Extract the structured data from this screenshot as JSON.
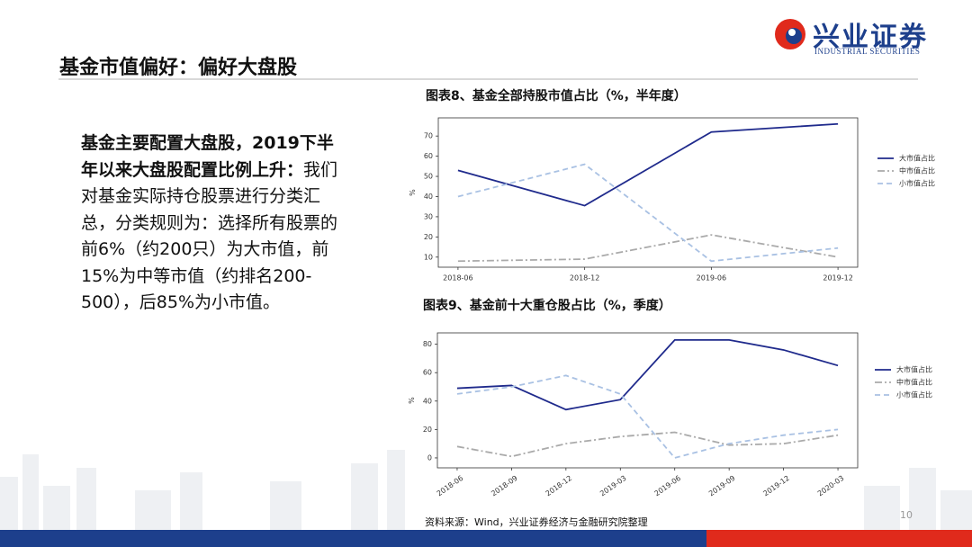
{
  "header": {
    "title": "基金市值偏好：偏好大盘股",
    "logo_name": "兴业证券",
    "logo_subtitle": "INDUSTRIAL SECURITIES"
  },
  "body": {
    "highlight": "基金主要配置大盘股，2019下半年以来大盘股配置比例上升：",
    "text": "我们对基金实际持仓股票进行分类汇总，分类规则为：选择所有股票的前6%（约200只）为大市值，前15%为中等市值（约排名200-500），后85%为小市值。"
  },
  "footer": {
    "source": "资料来源：Wind，兴业证券经济与金融研究院整理",
    "page": "10"
  },
  "chart_data": [
    {
      "type": "line",
      "title": "图表8、基金全部持股市值占比（%，半年度）",
      "y_label": "%",
      "categories": [
        "2018-06",
        "2018-12",
        "2019-06",
        "2019-12"
      ],
      "series": [
        {
          "name": "大市值占比",
          "color": "#1f2a8c",
          "linestyle": "solid",
          "values": [
            53,
            35.5,
            72,
            76
          ]
        },
        {
          "name": "中市值占比",
          "color": "#aaaaaa",
          "linestyle": "dashdot",
          "values": [
            8,
            9,
            21,
            10
          ]
        },
        {
          "name": "小市值占比",
          "color": "#a9c1e3",
          "linestyle": "dashed",
          "values": [
            40,
            56,
            8,
            14.5
          ]
        }
      ],
      "ylim": [
        5,
        79
      ],
      "yticks": [
        10,
        20,
        30,
        40,
        50,
        60,
        70
      ],
      "grid": false,
      "legend": "right"
    },
    {
      "type": "line",
      "title": "图表9、基金前十大重仓股占比（%，季度）",
      "y_label": "%",
      "categories": [
        "2018-06",
        "2018-09",
        "2018-12",
        "2019-03",
        "2019-06",
        "2019-09",
        "2019-12",
        "2020-03"
      ],
      "series": [
        {
          "name": "大市值占比",
          "color": "#1f2a8c",
          "linestyle": "solid",
          "values": [
            49,
            51,
            34,
            41,
            83,
            83,
            76,
            65
          ]
        },
        {
          "name": "中市值占比",
          "color": "#aaaaaa",
          "linestyle": "dashdot",
          "values": [
            8,
            1,
            10,
            15,
            18,
            9,
            10,
            16
          ]
        },
        {
          "name": "小市值占比",
          "color": "#a9c1e3",
          "linestyle": "dashed",
          "values": [
            45,
            50,
            58,
            45,
            0,
            10,
            16,
            20
          ]
        }
      ],
      "ylim": [
        -7,
        88
      ],
      "yticks": [
        0,
        20,
        40,
        60,
        80
      ],
      "grid": false,
      "legend": "right"
    }
  ]
}
